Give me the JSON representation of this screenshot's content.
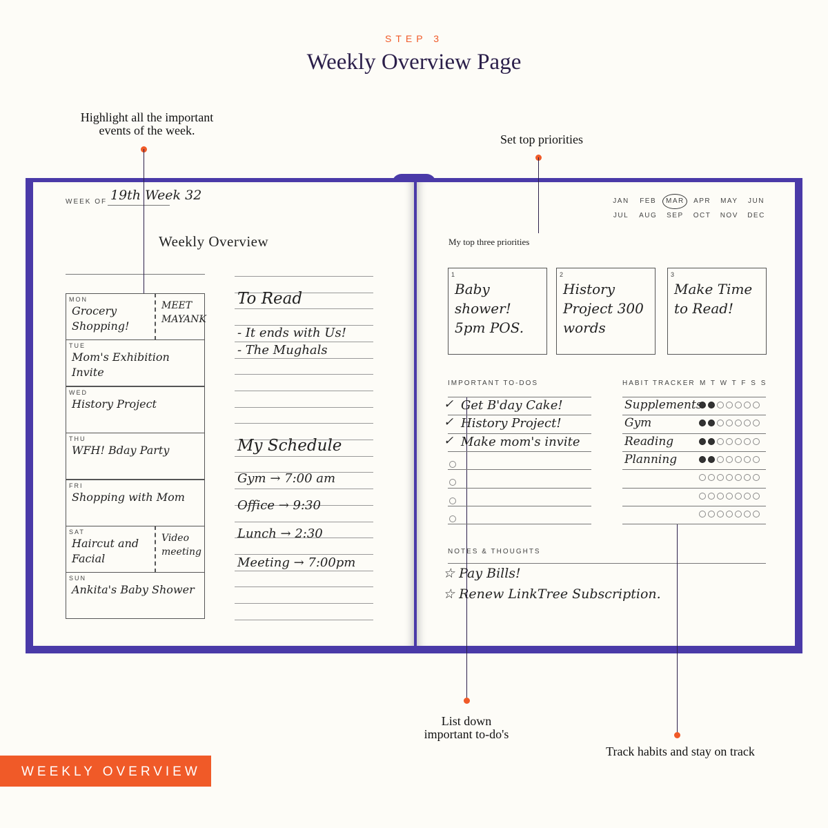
{
  "header": {
    "step": "STEP 3",
    "title": "Weekly Overview Page"
  },
  "annotations": {
    "highlight": [
      "Highlight all the important",
      "events of the week."
    ],
    "priorities": "Set top priorities",
    "todos": [
      "List down",
      "important to-do's"
    ],
    "habits": "Track habits and stay on track"
  },
  "left_page": {
    "week_of_label": "WEEK OF",
    "week_of_value": "19th Week 32",
    "heading": "Weekly Overview",
    "days": [
      {
        "label": "MON",
        "text": "Grocery Shopping!",
        "text2": "MEET MAYANK"
      },
      {
        "label": "TUE",
        "text": "Mom's Exhibition Invite",
        "text2": ""
      },
      {
        "label": "WED",
        "text": "History Project",
        "text2": ""
      },
      {
        "label": "THU",
        "text": "WFH! Bday Party",
        "text2": ""
      },
      {
        "label": "FRI",
        "text": "Shopping with Mom",
        "text2": ""
      },
      {
        "label": "SAT",
        "text": "Haircut and Facial",
        "text2": "Video meeting"
      },
      {
        "label": "SUN",
        "text": "Ankita's Baby Shower",
        "text2": ""
      }
    ],
    "notes": [
      "To Read",
      "- It ends with Us!",
      "- The Mughals",
      "My Schedule",
      "Gym → 7:00 am",
      "Office → 9:30",
      "Lunch → 2:30",
      "Meeting → 7:00pm"
    ]
  },
  "right_page": {
    "months": [
      "JAN",
      "FEB",
      "MAR",
      "APR",
      "MAY",
      "JUN",
      "JUL",
      "AUG",
      "SEP",
      "OCT",
      "NOV",
      "DEC"
    ],
    "selected_month": "MAR",
    "priorities_label": "My top three priorities",
    "priorities": [
      {
        "num": "1",
        "text": "Baby shower! 5pm POS."
      },
      {
        "num": "2",
        "text": "History Project 300 words"
      },
      {
        "num": "3",
        "text": "Make Time to Read!"
      }
    ],
    "todos_label": "IMPORTANT TO-DOS",
    "todos": [
      {
        "text": "Get B'day Cake!",
        "done": true
      },
      {
        "text": "History Project!",
        "done": true
      },
      {
        "text": "Make mom's invite",
        "done": true
      },
      {
        "text": "",
        "done": false
      },
      {
        "text": "",
        "done": false
      },
      {
        "text": "",
        "done": false
      },
      {
        "text": "",
        "done": false
      }
    ],
    "habit_label": "HABIT TRACKER",
    "habit_days": "M T W T F S S",
    "habits": [
      {
        "name": "Supplements",
        "done": 2
      },
      {
        "name": "Gym",
        "done": 2
      },
      {
        "name": "Reading",
        "done": 2
      },
      {
        "name": "Planning",
        "done": 2
      },
      {
        "name": "",
        "done": 0
      },
      {
        "name": "",
        "done": 0
      },
      {
        "name": "",
        "done": 0
      }
    ],
    "notes_label": "NOTES & THOUGHTS",
    "notes": [
      "☆ Pay Bills!",
      "☆ Renew LinkTree Subscription."
    ]
  },
  "banner": "WEEKLY OVERVIEW",
  "colors": {
    "accent": "#f05a28",
    "book": "#4a3aa8",
    "title": "#2b1f4a",
    "background": "#fdfcf7"
  }
}
